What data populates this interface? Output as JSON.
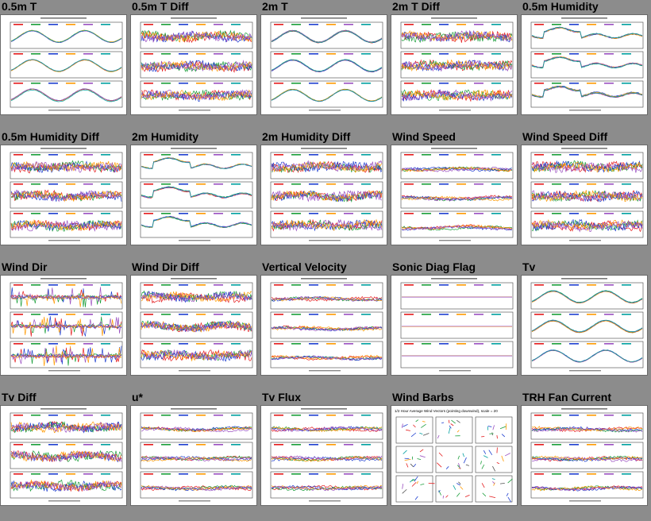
{
  "page": {
    "background": "#8c8c8c",
    "plots": [
      {
        "title": "0.5m T",
        "kind": "smooth3"
      },
      {
        "title": "0.5m T Diff",
        "kind": "noisy3"
      },
      {
        "title": "2m T",
        "kind": "smooth3"
      },
      {
        "title": "2m T Diff",
        "kind": "noisy3"
      },
      {
        "title": "0.5m Humidity",
        "kind": "humid3"
      },
      {
        "title": "0.5m Humidity Diff",
        "kind": "noisy3"
      },
      {
        "title": "2m Humidity",
        "kind": "humid3"
      },
      {
        "title": "2m Humidity Diff",
        "kind": "noisy3"
      },
      {
        "title": "Wind Speed",
        "kind": "flat3"
      },
      {
        "title": "Wind Speed Diff",
        "kind": "noisy3"
      },
      {
        "title": "Wind Dir",
        "kind": "spiky3"
      },
      {
        "title": "Wind Dir Diff",
        "kind": "noisy3"
      },
      {
        "title": "Vertical Velocity",
        "kind": "flat3"
      },
      {
        "title": "Sonic Diag Flag",
        "kind": "empty3"
      },
      {
        "title": "Tv",
        "kind": "smooth3"
      },
      {
        "title": "Tv Diff",
        "kind": "noisy3"
      },
      {
        "title": "u*",
        "kind": "flat3"
      },
      {
        "title": "Tv Flux",
        "kind": "flat3"
      },
      {
        "title": "Wind Barbs",
        "kind": "barbs",
        "caption": "1/2 Hour Average Wind Vectors (pointing downwind), scale = 20"
      },
      {
        "title": "TRH Fan Current",
        "kind": "flat3"
      }
    ],
    "series_colors": [
      "#e41a1c",
      "#1a9e3a",
      "#1f3fd0",
      "#ff9a00",
      "#9a4fc0",
      "#00a0a0",
      "#505050"
    ]
  }
}
